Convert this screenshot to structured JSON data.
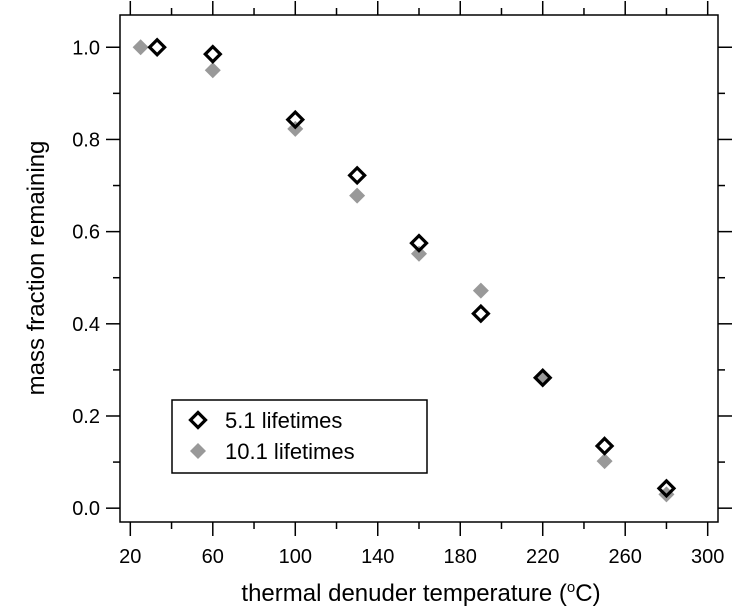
{
  "chart_data": {
    "type": "scatter",
    "xlabel": "thermal denuder temperature (",
    "xlabel_sup": "o",
    "xlabel_tail": "C)",
    "ylabel": "mass fraction remaining",
    "xlim": [
      15,
      305
    ],
    "ylim": [
      -0.03,
      1.07
    ],
    "x_ticks": [
      20,
      60,
      100,
      140,
      180,
      220,
      260,
      300
    ],
    "x_tick_labels": [
      "20",
      "60",
      "100",
      "140",
      "180",
      "220",
      "260",
      "300"
    ],
    "x_minor_ticks": [
      40,
      80,
      120,
      160,
      200,
      240,
      280
    ],
    "y_ticks": [
      0.0,
      0.2,
      0.4,
      0.6,
      0.8,
      1.0
    ],
    "y_tick_labels": [
      "0.0",
      "0.2",
      "0.4",
      "0.6",
      "0.8",
      "1.0"
    ],
    "y_minor_ticks": [
      0.1,
      0.3,
      0.5,
      0.7,
      0.9
    ],
    "grid": false,
    "legend_position": "bottom-left",
    "series": [
      {
        "name": "5.1 lifetimes",
        "marker": "open-diamond",
        "color": "#000000",
        "x": [
          33,
          60,
          100,
          130,
          160,
          190,
          220,
          250,
          280
        ],
        "y": [
          1.0,
          0.985,
          0.843,
          0.722,
          0.575,
          0.422,
          0.283,
          0.135,
          0.043
        ]
      },
      {
        "name": "10.1 lifetimes",
        "marker": "filled-diamond",
        "color": "#999999",
        "x": [
          25,
          60,
          100,
          130,
          160,
          190,
          220,
          250,
          280
        ],
        "y": [
          1.0,
          0.95,
          0.823,
          0.678,
          0.552,
          0.472,
          0.282,
          0.102,
          0.03
        ]
      }
    ]
  }
}
